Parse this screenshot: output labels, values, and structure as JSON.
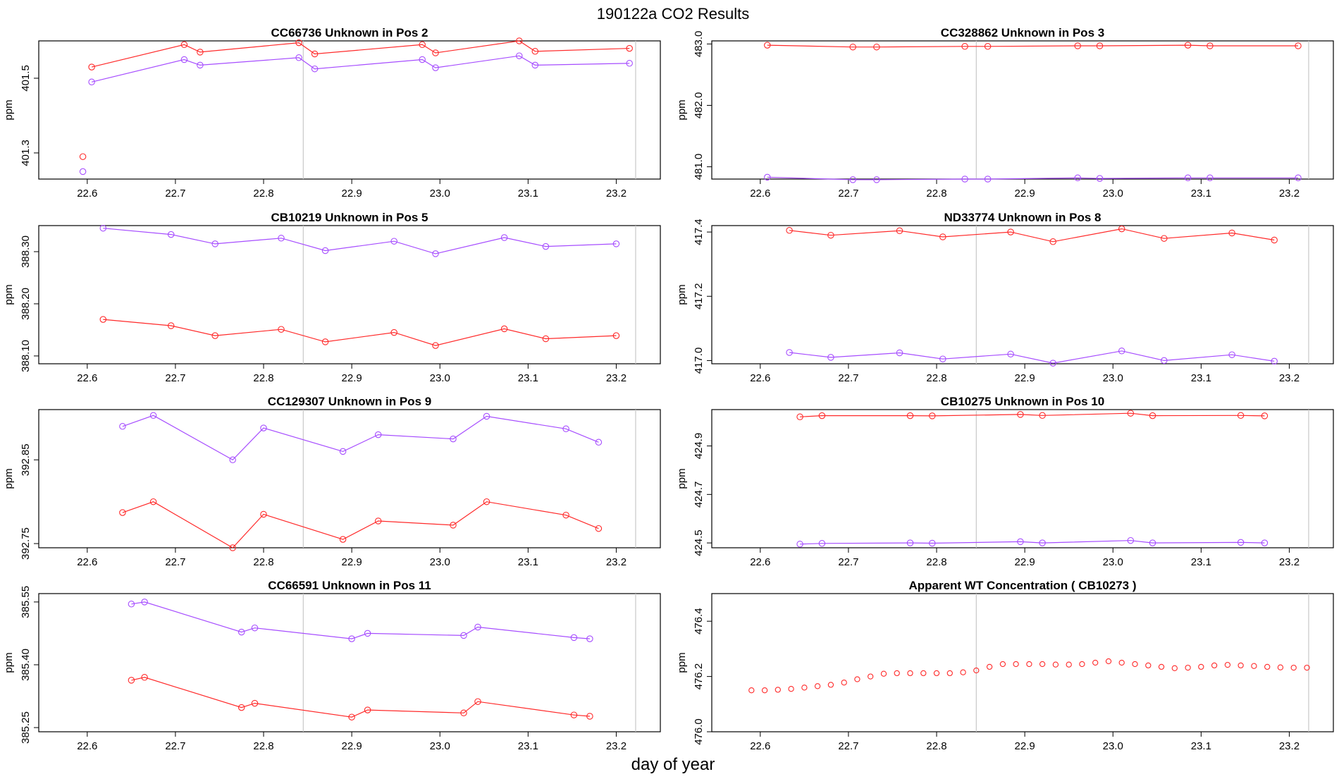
{
  "main_title": "190122a  CO2 Results",
  "xlabel": "day of year",
  "colors": {
    "red": "#ff2a2a",
    "purple": "#a64dff",
    "vline": "#c8c8c8",
    "frame": "#000000"
  },
  "chart_data": [
    {
      "type": "line",
      "title": "CC66736    Unknown in Pos 2",
      "ylabel": "ppm",
      "xlim": [
        22.545,
        23.25
      ],
      "ylim": [
        401.23,
        401.6
      ],
      "xticks": [
        "22.6",
        "22.7",
        "22.8",
        "22.9",
        "23.0",
        "23.1",
        "23.2"
      ],
      "yticks": [
        "401.3",
        "401.5"
      ],
      "vlines": [
        22.845,
        23.222
      ],
      "series": [
        {
          "name": "red",
          "values": [
            [
              22.595,
              401.29
            ]
          ],
          "connect": false
        },
        {
          "name": "purple",
          "values": [
            [
              22.595,
              401.25
            ]
          ],
          "connect": false
        },
        {
          "name": "red",
          "values": [
            [
              22.605,
              401.53
            ],
            [
              22.71,
              401.59
            ],
            [
              22.728,
              401.57
            ],
            [
              22.84,
              401.595
            ],
            [
              22.858,
              401.565
            ],
            [
              22.98,
              401.59
            ],
            [
              22.995,
              401.568
            ],
            [
              23.09,
              401.6
            ],
            [
              23.108,
              401.572
            ],
            [
              23.215,
              401.58
            ]
          ]
        },
        {
          "name": "purple",
          "values": [
            [
              22.605,
              401.49
            ],
            [
              22.71,
              401.55
            ],
            [
              22.728,
              401.535
            ],
            [
              22.84,
              401.555
            ],
            [
              22.858,
              401.525
            ],
            [
              22.98,
              401.55
            ],
            [
              22.995,
              401.528
            ],
            [
              23.09,
              401.56
            ],
            [
              23.108,
              401.535
            ],
            [
              23.215,
              401.54
            ]
          ]
        }
      ]
    },
    {
      "type": "line",
      "title": "CC328862    Unknown in Pos 3",
      "ylabel": "ppm",
      "xlim": [
        22.545,
        23.25
      ],
      "ylim": [
        480.8,
        483.05
      ],
      "xticks": [
        "22.6",
        "22.7",
        "22.8",
        "22.9",
        "23.0",
        "23.1",
        "23.2"
      ],
      "yticks": [
        "481.0",
        "482.0",
        "483.0"
      ],
      "vlines": [
        22.845,
        23.222
      ],
      "series": [
        {
          "name": "red",
          "values": [
            [
              22.608,
              482.98
            ],
            [
              22.705,
              482.95
            ],
            [
              22.732,
              482.95
            ],
            [
              22.832,
              482.96
            ],
            [
              22.858,
              482.96
            ],
            [
              22.96,
              482.97
            ],
            [
              22.985,
              482.97
            ],
            [
              23.085,
              482.98
            ],
            [
              23.11,
              482.97
            ],
            [
              23.21,
              482.97
            ]
          ]
        },
        {
          "name": "purple",
          "values": [
            [
              22.608,
              480.83
            ],
            [
              22.705,
              480.79
            ],
            [
              22.732,
              480.79
            ],
            [
              22.832,
              480.8
            ],
            [
              22.858,
              480.8
            ],
            [
              22.96,
              480.82
            ],
            [
              22.985,
              480.81
            ],
            [
              23.085,
              480.82
            ],
            [
              23.11,
              480.82
            ],
            [
              23.21,
              480.82
            ]
          ]
        }
      ]
    },
    {
      "type": "line",
      "title": "CB10219    Unknown in Pos 5",
      "ylabel": "ppm",
      "xlim": [
        22.545,
        23.25
      ],
      "ylim": [
        388.085,
        388.35
      ],
      "xticks": [
        "22.6",
        "22.7",
        "22.8",
        "22.9",
        "23.0",
        "23.1",
        "23.2"
      ],
      "yticks": [
        "388.10",
        "388.20",
        "388.30"
      ],
      "vlines": [
        22.845,
        23.222
      ],
      "series": [
        {
          "name": "purple",
          "values": [
            [
              22.618,
              388.345
            ],
            [
              22.695,
              388.333
            ],
            [
              22.745,
              388.315
            ],
            [
              22.82,
              388.326
            ],
            [
              22.87,
              388.302
            ],
            [
              22.948,
              388.32
            ],
            [
              22.995,
              388.296
            ],
            [
              23.073,
              388.327
            ],
            [
              23.12,
              388.31
            ],
            [
              23.2,
              388.315
            ]
          ]
        },
        {
          "name": "red",
          "values": [
            [
              22.618,
              388.17
            ],
            [
              22.695,
              388.158
            ],
            [
              22.745,
              388.139
            ],
            [
              22.82,
              388.151
            ],
            [
              22.87,
              388.127
            ],
            [
              22.948,
              388.145
            ],
            [
              22.995,
              388.12
            ],
            [
              23.073,
              388.152
            ],
            [
              23.12,
              388.133
            ],
            [
              23.2,
              388.139
            ]
          ]
        }
      ]
    },
    {
      "type": "line",
      "title": "ND33774    Unknown in Pos 8",
      "ylabel": "ppm",
      "xlim": [
        22.545,
        23.25
      ],
      "ylim": [
        416.99,
        417.42
      ],
      "xticks": [
        "22.6",
        "22.7",
        "22.8",
        "22.9",
        "23.0",
        "23.1",
        "23.2"
      ],
      "yticks": [
        "417.0",
        "417.2",
        "417.4"
      ],
      "vlines": [
        22.845,
        23.222
      ],
      "series": [
        {
          "name": "red",
          "values": [
            [
              22.633,
              417.405
            ],
            [
              22.68,
              417.39
            ],
            [
              22.758,
              417.404
            ],
            [
              22.807,
              417.385
            ],
            [
              22.884,
              417.4
            ],
            [
              22.932,
              417.37
            ],
            [
              23.01,
              417.41
            ],
            [
              23.058,
              417.38
            ],
            [
              23.135,
              417.397
            ],
            [
              23.183,
              417.375
            ]
          ]
        },
        {
          "name": "purple",
          "values": [
            [
              22.633,
              417.025
            ],
            [
              22.68,
              417.01
            ],
            [
              22.758,
              417.024
            ],
            [
              22.807,
              417.005
            ],
            [
              22.884,
              417.02
            ],
            [
              22.932,
              416.992
            ],
            [
              23.01,
              417.03
            ],
            [
              23.058,
              417.0
            ],
            [
              23.135,
              417.018
            ],
            [
              23.183,
              416.998
            ]
          ]
        }
      ]
    },
    {
      "type": "line",
      "title": "CC129307    Unknown in Pos 9",
      "ylabel": "ppm",
      "xlim": [
        22.545,
        23.25
      ],
      "ylim": [
        392.745,
        392.91
      ],
      "xticks": [
        "22.6",
        "22.7",
        "22.8",
        "22.9",
        "23.0",
        "23.1",
        "23.2"
      ],
      "yticks": [
        "392.75",
        "392.85"
      ],
      "vlines": [
        22.845,
        23.222
      ],
      "series": [
        {
          "name": "purple",
          "values": [
            [
              22.64,
              392.89
            ],
            [
              22.675,
              392.903
            ],
            [
              22.765,
              392.85
            ],
            [
              22.8,
              392.888
            ],
            [
              22.89,
              392.86
            ],
            [
              22.93,
              392.88
            ],
            [
              23.015,
              392.875
            ],
            [
              23.053,
              392.902
            ],
            [
              23.143,
              392.887
            ],
            [
              23.18,
              392.871
            ]
          ]
        },
        {
          "name": "red",
          "values": [
            [
              22.64,
              392.787
            ],
            [
              22.675,
              392.8
            ],
            [
              22.765,
              392.745
            ],
            [
              22.8,
              392.785
            ],
            [
              22.89,
              392.755
            ],
            [
              22.93,
              392.777
            ],
            [
              23.015,
              392.772
            ],
            [
              23.053,
              392.8
            ],
            [
              23.143,
              392.784
            ],
            [
              23.18,
              392.768
            ]
          ]
        }
      ]
    },
    {
      "type": "line",
      "title": "CB10275    Unknown in Pos 10",
      "ylabel": "ppm",
      "xlim": [
        22.545,
        23.25
      ],
      "ylim": [
        424.48,
        425.05
      ],
      "xticks": [
        "22.6",
        "22.7",
        "22.8",
        "22.9",
        "23.0",
        "23.1",
        "23.2"
      ],
      "yticks": [
        "424.5",
        "424.7",
        "424.9"
      ],
      "vlines": [
        22.845,
        23.222
      ],
      "series": [
        {
          "name": "red",
          "values": [
            [
              22.645,
              425.02
            ],
            [
              22.67,
              425.025
            ],
            [
              22.77,
              425.025
            ],
            [
              22.795,
              425.024
            ],
            [
              22.895,
              425.03
            ],
            [
              22.92,
              425.026
            ],
            [
              23.02,
              425.035
            ],
            [
              23.045,
              425.025
            ],
            [
              23.145,
              425.026
            ],
            [
              23.172,
              425.024
            ]
          ]
        },
        {
          "name": "purple",
          "values": [
            [
              22.645,
              424.495
            ],
            [
              22.67,
              424.498
            ],
            [
              22.77,
              424.5
            ],
            [
              22.795,
              424.499
            ],
            [
              22.895,
              424.505
            ],
            [
              22.92,
              424.5
            ],
            [
              23.02,
              424.51
            ],
            [
              23.045,
              424.5
            ],
            [
              23.145,
              424.502
            ],
            [
              23.172,
              424.5
            ]
          ]
        }
      ]
    },
    {
      "type": "line",
      "title": "CC66591    Unknown in Pos 11",
      "ylabel": "ppm",
      "xlim": [
        22.545,
        23.25
      ],
      "ylim": [
        385.24,
        385.57
      ],
      "xticks": [
        "22.6",
        "22.7",
        "22.8",
        "22.9",
        "23.0",
        "23.1",
        "23.2"
      ],
      "yticks": [
        "385.25",
        "385.40",
        "385.55"
      ],
      "vlines": [
        22.845,
        23.222
      ],
      "series": [
        {
          "name": "purple",
          "values": [
            [
              22.65,
              385.545
            ],
            [
              22.665,
              385.55
            ],
            [
              22.775,
              385.478
            ],
            [
              22.79,
              385.488
            ],
            [
              22.9,
              385.462
            ],
            [
              22.918,
              385.475
            ],
            [
              23.027,
              385.47
            ],
            [
              23.043,
              385.49
            ],
            [
              23.152,
              385.465
            ],
            [
              23.17,
              385.462
            ]
          ]
        },
        {
          "name": "red",
          "values": [
            [
              22.65,
              385.363
            ],
            [
              22.665,
              385.37
            ],
            [
              22.775,
              385.298
            ],
            [
              22.79,
              385.308
            ],
            [
              22.9,
              385.275
            ],
            [
              22.918,
              385.292
            ],
            [
              23.027,
              385.285
            ],
            [
              23.043,
              385.312
            ],
            [
              23.152,
              385.28
            ],
            [
              23.17,
              385.277
            ]
          ]
        }
      ]
    },
    {
      "type": "line",
      "title": "Apparent WT Concentration ( CB10273 )",
      "ylabel": "ppm",
      "xlim": [
        22.545,
        23.25
      ],
      "ylim": [
        476.0,
        476.5
      ],
      "xticks": [
        "22.6",
        "22.7",
        "22.8",
        "22.9",
        "23.0",
        "23.1",
        "23.2"
      ],
      "yticks": [
        "476.0",
        "476.2",
        "476.4"
      ],
      "vlines": [
        22.845,
        23.222
      ],
      "series": [
        {
          "name": "red",
          "values": [
            [
              22.59,
              476.15
            ],
            [
              22.605,
              476.15
            ],
            [
              22.62,
              476.152
            ],
            [
              22.635,
              476.155
            ],
            [
              22.65,
              476.16
            ],
            [
              22.665,
              476.165
            ],
            [
              22.68,
              476.17
            ],
            [
              22.695,
              476.178
            ],
            [
              22.71,
              476.19
            ],
            [
              22.725,
              476.2
            ],
            [
              22.74,
              476.21
            ],
            [
              22.755,
              476.212
            ],
            [
              22.77,
              476.212
            ],
            [
              22.785,
              476.212
            ],
            [
              22.8,
              476.212
            ],
            [
              22.815,
              476.212
            ],
            [
              22.83,
              476.215
            ],
            [
              22.845,
              476.222
            ],
            [
              22.86,
              476.235
            ],
            [
              22.875,
              476.245
            ],
            [
              22.89,
              476.245
            ],
            [
              22.905,
              476.245
            ],
            [
              22.92,
              476.245
            ],
            [
              22.935,
              476.243
            ],
            [
              22.95,
              476.243
            ],
            [
              22.965,
              476.245
            ],
            [
              22.98,
              476.25
            ],
            [
              22.995,
              476.255
            ],
            [
              23.01,
              476.25
            ],
            [
              23.025,
              476.245
            ],
            [
              23.04,
              476.24
            ],
            [
              23.055,
              476.235
            ],
            [
              23.07,
              476.23
            ],
            [
              23.085,
              476.232
            ],
            [
              23.1,
              476.235
            ],
            [
              23.115,
              476.24
            ],
            [
              23.13,
              476.242
            ],
            [
              23.145,
              476.24
            ],
            [
              23.16,
              476.238
            ],
            [
              23.175,
              476.235
            ],
            [
              23.19,
              476.233
            ],
            [
              23.205,
              476.232
            ],
            [
              23.22,
              476.232
            ]
          ],
          "connect": false,
          "dense": true
        }
      ]
    }
  ]
}
